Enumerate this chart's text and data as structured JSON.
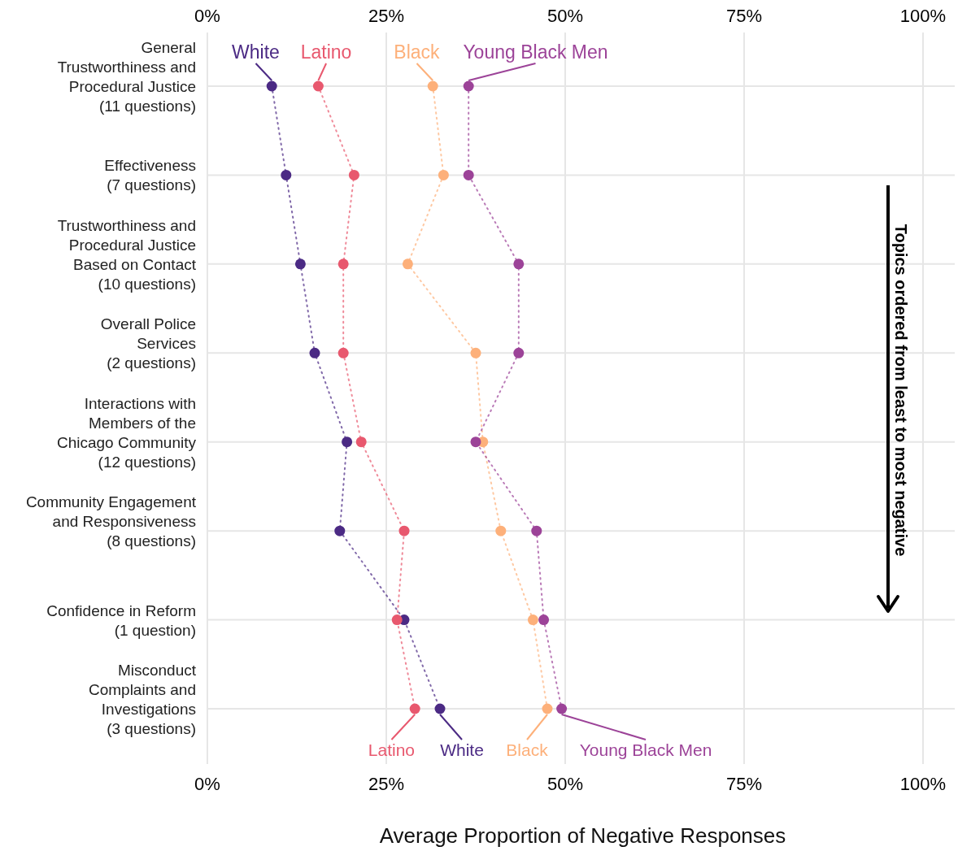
{
  "chart_data": {
    "type": "line",
    "orientation": "horizontal",
    "xlabel": "Average Proportion of Negative Responses",
    "categories": [
      "General Trustworthiness and Procedural Justice (11 questions)",
      "Effectiveness (7 questions)",
      "Trustworthiness and Procedural Justice Based on Contact (10 questions)",
      "Overall Police Services (2 questions)",
      "Interactions with Members of the Chicago Community (12 questions)",
      "Community Engagement and Responsiveness (8 questions)",
      "Confidence in Reform (1 question)",
      "Misconduct Complaints and Investigations (3 questions)"
    ],
    "series": [
      {
        "name": "White",
        "color": "#4b2a84",
        "values": [
          9,
          11,
          13,
          15,
          19.5,
          18.5,
          27.5,
          32.5
        ]
      },
      {
        "name": "Latino",
        "color": "#e8586e",
        "values": [
          15.5,
          20.5,
          19,
          19,
          21.5,
          27.5,
          26.5,
          29
        ]
      },
      {
        "name": "Black",
        "color": "#fdb07a",
        "values": [
          31.5,
          33,
          28,
          37.5,
          38.5,
          41,
          45.5,
          47.5
        ]
      },
      {
        "name": "Young Black Men",
        "color": "#9c4398",
        "values": [
          36.5,
          36.5,
          43.5,
          43.5,
          37.5,
          46,
          47,
          49.5
        ]
      }
    ],
    "xlim": [
      0,
      100
    ],
    "xticks": [
      {
        "value": 0,
        "label": "0%"
      },
      {
        "value": 25,
        "label": "25%"
      },
      {
        "value": 50,
        "label": "50%"
      },
      {
        "value": 75,
        "label": "75%"
      },
      {
        "value": 100,
        "label": "100%"
      }
    ],
    "x2lim": [
      0,
      100
    ],
    "x2ticks": [
      {
        "value": 0,
        "label": "0%"
      },
      {
        "value": 25,
        "label": "25%"
      },
      {
        "value": 50,
        "label": "50%"
      },
      {
        "value": 75,
        "label": "75%"
      },
      {
        "value": 100,
        "label": "100%"
      }
    ],
    "grid": true,
    "legend": "bottom",
    "marker": "circle",
    "line_style": "dotted",
    "annotations": [
      "Topics ordered from least to most negative"
    ]
  }
}
